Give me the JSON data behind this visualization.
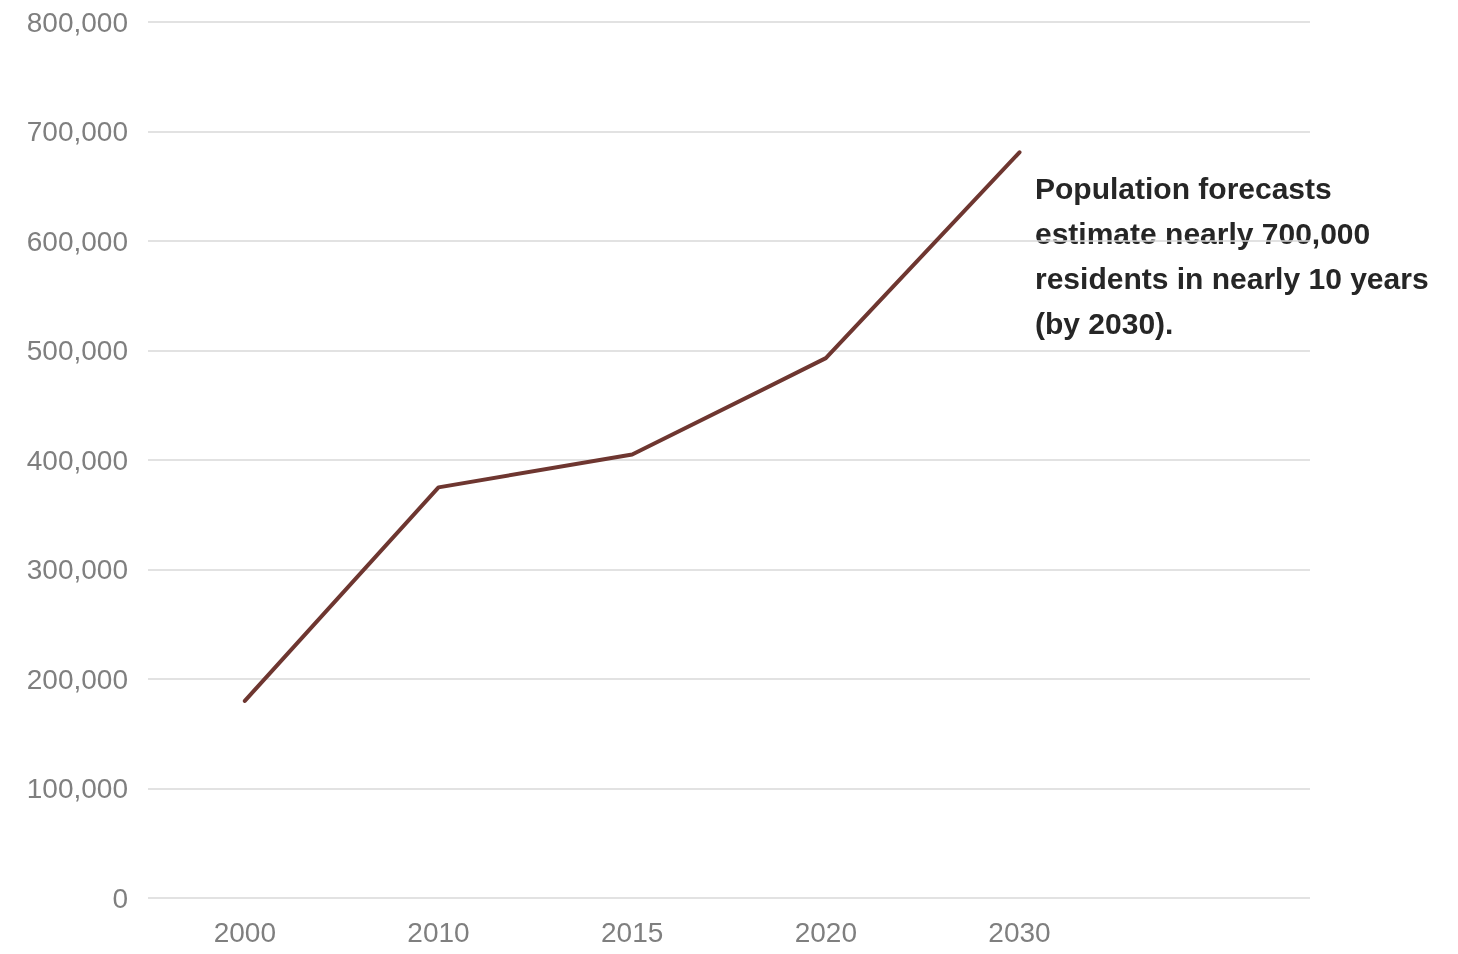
{
  "chart_data": {
    "type": "line",
    "categories": [
      "2000",
      "2010",
      "2015",
      "2020",
      "2030",
      null
    ],
    "series": [
      {
        "color": "#6e3630",
        "values": [
          180000,
          375000,
          405000,
          493000,
          681000,
          null
        ]
      }
    ],
    "ylim": [
      0,
      800000
    ],
    "yticks": [
      {
        "value": 0,
        "label": "0"
      },
      {
        "value": 100000,
        "label": "100,000"
      },
      {
        "value": 200000,
        "label": "200,000"
      },
      {
        "value": 300000,
        "label": "300,000"
      },
      {
        "value": 400000,
        "label": "400,000"
      },
      {
        "value": 500000,
        "label": "500,000"
      },
      {
        "value": 600000,
        "label": "600,000"
      },
      {
        "value": 700000,
        "label": "700,000"
      },
      {
        "value": 800000,
        "label": "800,000"
      }
    ],
    "grid": "y",
    "marker": "none",
    "line_style": "solid",
    "annotations": [
      "Population forecasts estimate nearly 700,000 residents in nearly 10 years (by 2030)."
    ]
  }
}
